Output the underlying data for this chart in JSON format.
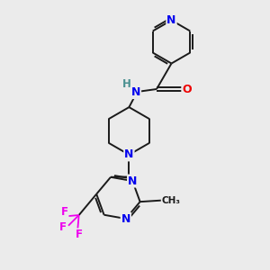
{
  "bg_color": "#ebebeb",
  "bond_color": "#1a1a1a",
  "N_color": "#0000ee",
  "O_color": "#ee0000",
  "F_color": "#ee00ee",
  "H_color": "#4a9090",
  "figsize": [
    3.0,
    3.0
  ],
  "dpi": 100,
  "xlim": [
    0,
    10
  ],
  "ylim": [
    0,
    10
  ]
}
